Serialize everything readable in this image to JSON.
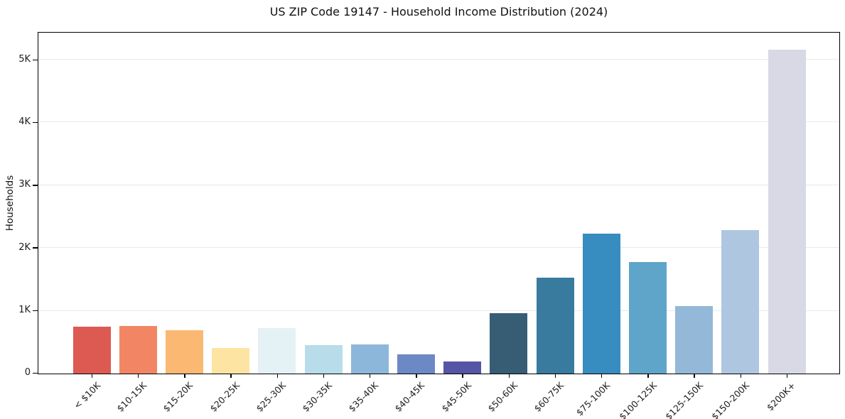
{
  "chart_data": {
    "type": "bar",
    "title": "US ZIP Code 19147 - Household Income Distribution (2024)",
    "xlabel": "",
    "ylabel": "Households",
    "categories": [
      "< $10K",
      "$10-15K",
      "$15-20K",
      "$20-25K",
      "$25-30K",
      "$30-35K",
      "$35-40K",
      "$40-45K",
      "$45-50K",
      "$50-60K",
      "$60-75K",
      "$75-100K",
      "$100-125K",
      "$125-150K",
      "$150-200K",
      "$200K+"
    ],
    "values": [
      745,
      760,
      690,
      405,
      720,
      450,
      460,
      300,
      190,
      965,
      1530,
      2225,
      1775,
      1080,
      2285,
      5160
    ],
    "bar_colors": [
      "#dc5a52",
      "#f28664",
      "#fab873",
      "#fde4a3",
      "#e4f1f5",
      "#b9dcea",
      "#8db7da",
      "#6c88c5",
      "#5555a5",
      "#375d75",
      "#387b9e",
      "#378cc0",
      "#5fa4c9",
      "#94b8d8",
      "#aec6e0",
      "#d8d9e5"
    ],
    "y_tick_labels": [
      "0",
      "1K",
      "2K",
      "3K",
      "4K",
      "5K"
    ],
    "y_tick_values": [
      0,
      1000,
      2000,
      3000,
      4000,
      5000
    ],
    "ylim": [
      0,
      5430
    ],
    "grid": "horizontal",
    "grid_color": "#e9e9e9",
    "axis_color": "#000000",
    "text_color": "#1c1c1c",
    "background_color": "#ffffff",
    "legend": "none"
  }
}
